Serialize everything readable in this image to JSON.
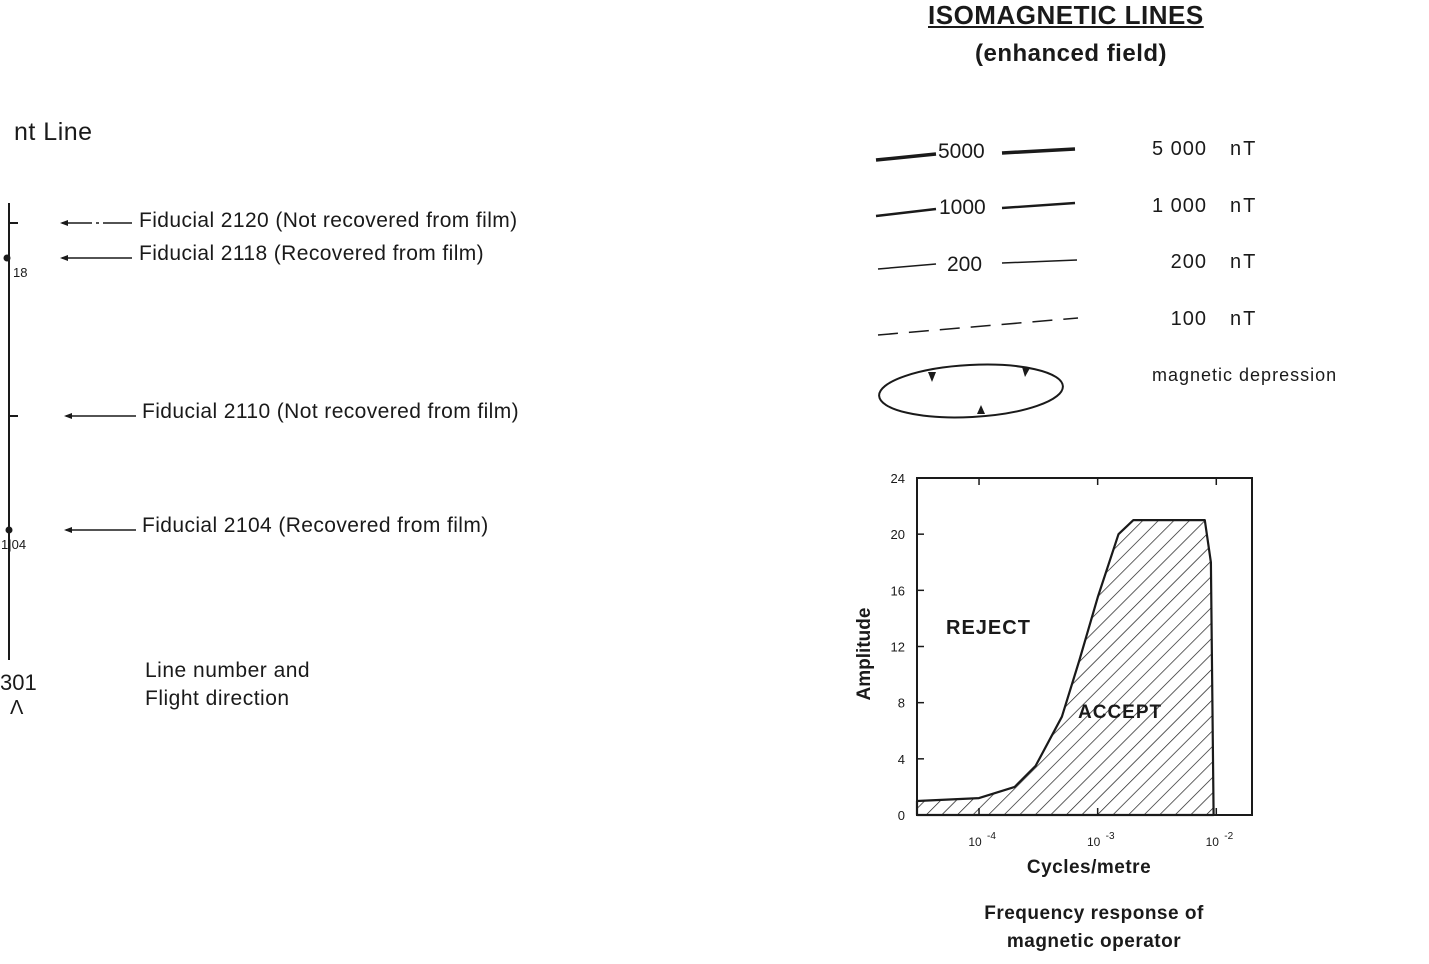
{
  "flight_line": {
    "title": "nt Line",
    "fiducial_marks": [
      {
        "label": "Fiducial 2120 (Not recovered from film)",
        "recovered": false
      },
      {
        "label": "Fiducial 2118 (Recovered from film)",
        "recovered": true,
        "tick_label": "18"
      },
      {
        "label": "Fiducial 2110 (Not recovered from film)",
        "recovered": false
      },
      {
        "label": "Fiducial 2104 (Recovered from film)",
        "recovered": true,
        "tick_label": "1|04"
      }
    ],
    "line_number": "301",
    "direction_arrow": "Λ",
    "line_number_caption_1": "Line number and",
    "line_number_caption_2": "Flight direction"
  },
  "isomagnetic": {
    "title": "ISOMAGNETIC LINES",
    "subtitle": "(enhanced field)",
    "contours": [
      {
        "contour_label": "5000",
        "value": "5 000",
        "unit": "nT",
        "style": "solid-thick"
      },
      {
        "contour_label": "1000",
        "value": "1 000",
        "unit": "nT",
        "style": "solid"
      },
      {
        "contour_label": "200",
        "value": "200",
        "unit": "nT",
        "style": "solid-thin"
      },
      {
        "contour_label": "",
        "value": "100",
        "unit": "nT",
        "style": "dashed"
      }
    ],
    "depression_label": "magnetic depression"
  },
  "chart_data": {
    "type": "area",
    "title": "Frequency response of magnetic operator",
    "title_line_1": "Frequency response of",
    "title_line_2": "magnetic operator",
    "xlabel": "Cycles/metre",
    "ylabel": "Amplitude",
    "x_scale": "log",
    "x_tick_labels": [
      "10-4",
      "10-3",
      "10-2"
    ],
    "x_ticks": [
      0.0001,
      0.001,
      0.01
    ],
    "xlim": [
      3e-05,
      0.02
    ],
    "ylim": [
      0,
      24
    ],
    "y_ticks": [
      0,
      4,
      8,
      12,
      16,
      20,
      24
    ],
    "regions": {
      "inside": "ACCEPT",
      "outside": "REJECT"
    },
    "series": [
      {
        "x": [
          3e-05,
          0.0001,
          0.0002,
          0.0003,
          0.0005,
          0.0007,
          0.001,
          0.0015,
          0.002,
          0.003,
          0.005,
          0.008,
          0.009,
          0.0095
        ],
        "y": [
          1.0,
          1.2,
          2.0,
          3.5,
          7.0,
          11.0,
          15.5,
          20.0,
          21.0,
          21.0,
          21.0,
          21.0,
          18.0,
          0
        ]
      }
    ]
  }
}
